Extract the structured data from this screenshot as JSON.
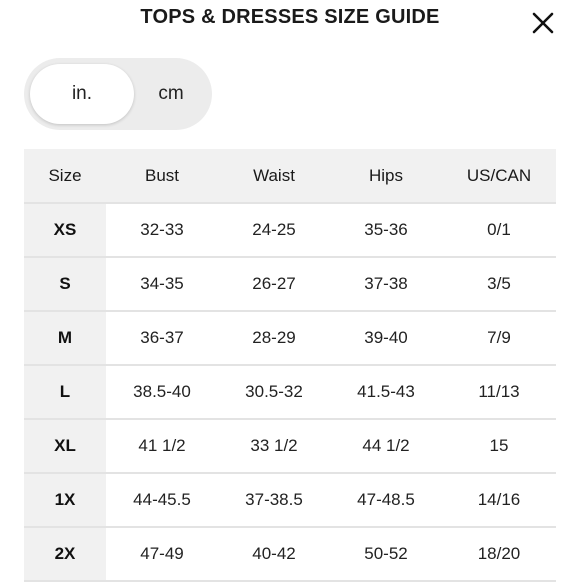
{
  "header": {
    "title": "TOPS & DRESSES SIZE GUIDE",
    "close_icon": "close-icon"
  },
  "unit_toggle": {
    "options": [
      "in.",
      "cm"
    ],
    "selected": "in."
  },
  "size_table": {
    "columns": [
      "Size",
      "Bust",
      "Waist",
      "Hips",
      "US/CAN"
    ],
    "rows": [
      [
        "XS",
        "32-33",
        "24-25",
        "35-36",
        "0/1"
      ],
      [
        "S",
        "34-35",
        "26-27",
        "37-38",
        "3/5"
      ],
      [
        "M",
        "36-37",
        "28-29",
        "39-40",
        "7/9"
      ],
      [
        "L",
        "38.5-40",
        "30.5-32",
        "41.5-43",
        "11/13"
      ],
      [
        "XL",
        "41 1/2",
        "33 1/2",
        "44 1/2",
        "15"
      ],
      [
        "1X",
        "44-45.5",
        "37-38.5",
        "47-48.5",
        "14/16"
      ],
      [
        "2X",
        "47-49",
        "40-42",
        "50-52",
        "18/20"
      ]
    ]
  },
  "colors": {
    "header_bg": "#f1f1f1",
    "toggle_bg": "#ececec",
    "active_segment": "#ffffff",
    "divider": "#e3e3e3"
  }
}
